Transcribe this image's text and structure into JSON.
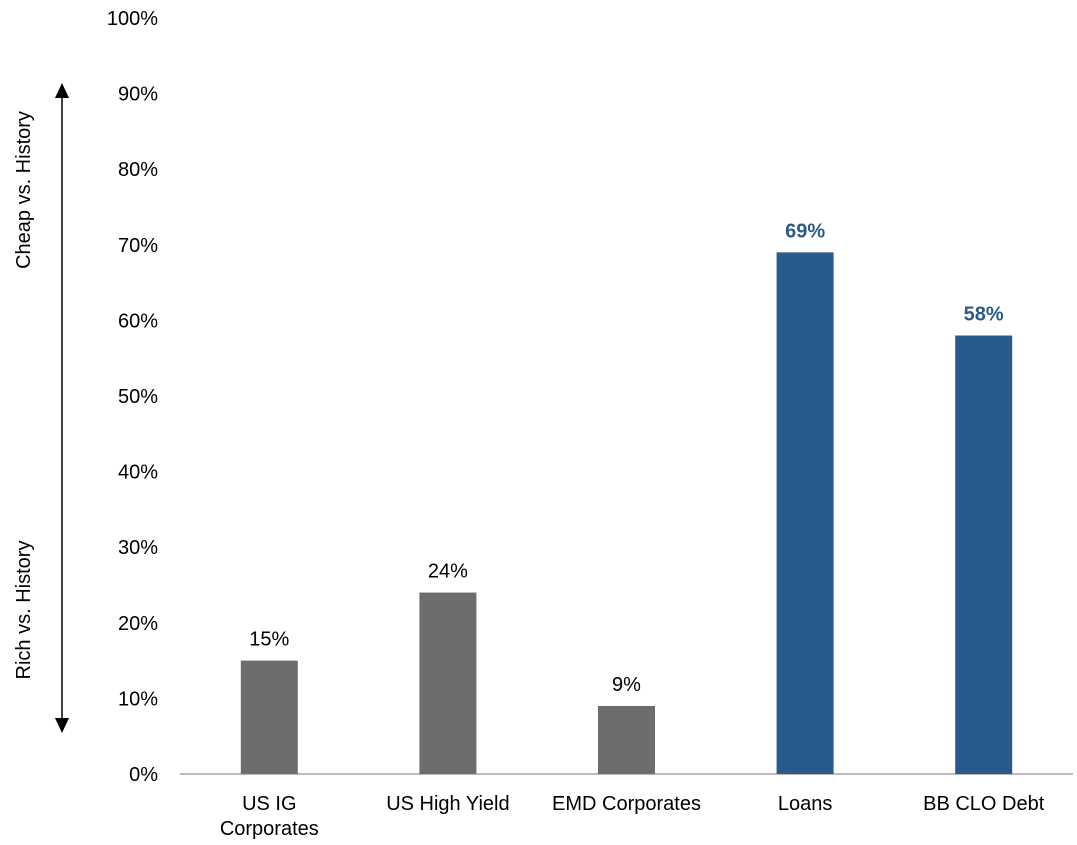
{
  "chart_data": {
    "type": "bar",
    "categories": [
      "US IG Corporates",
      "US High Yield",
      "EMD Corporates",
      "Loans",
      "BB CLO Debt"
    ],
    "category_lines": [
      [
        "US IG",
        "Corporates"
      ],
      [
        "US High Yield"
      ],
      [
        "EMD Corporates"
      ],
      [
        "Loans"
      ],
      [
        "BB CLO Debt"
      ]
    ],
    "values": [
      15,
      24,
      9,
      69,
      58
    ],
    "data_labels": [
      "15%",
      "24%",
      "9%",
      "69%",
      "58%"
    ],
    "highlighted": [
      false,
      false,
      false,
      true,
      true
    ],
    "ylim": [
      0,
      100
    ],
    "yticks": [
      0,
      10,
      20,
      30,
      40,
      50,
      60,
      70,
      80,
      90,
      100
    ],
    "ytick_labels": [
      "0%",
      "10%",
      "20%",
      "30%",
      "40%",
      "50%",
      "60%",
      "70%",
      "80%",
      "90%",
      "100%"
    ],
    "title": "",
    "xlabel": "",
    "ylabel": "",
    "annotations": {
      "top": "Cheap vs. History",
      "bottom": "Rich vs. History"
    },
    "grid": false,
    "legend": "none",
    "colors": {
      "default_bar": "#6d6d6d",
      "highlight_bar": "#285a8c",
      "default_label": "#000000",
      "highlight_label": "#2c5a8a",
      "axis": "#a6a6a6"
    }
  }
}
